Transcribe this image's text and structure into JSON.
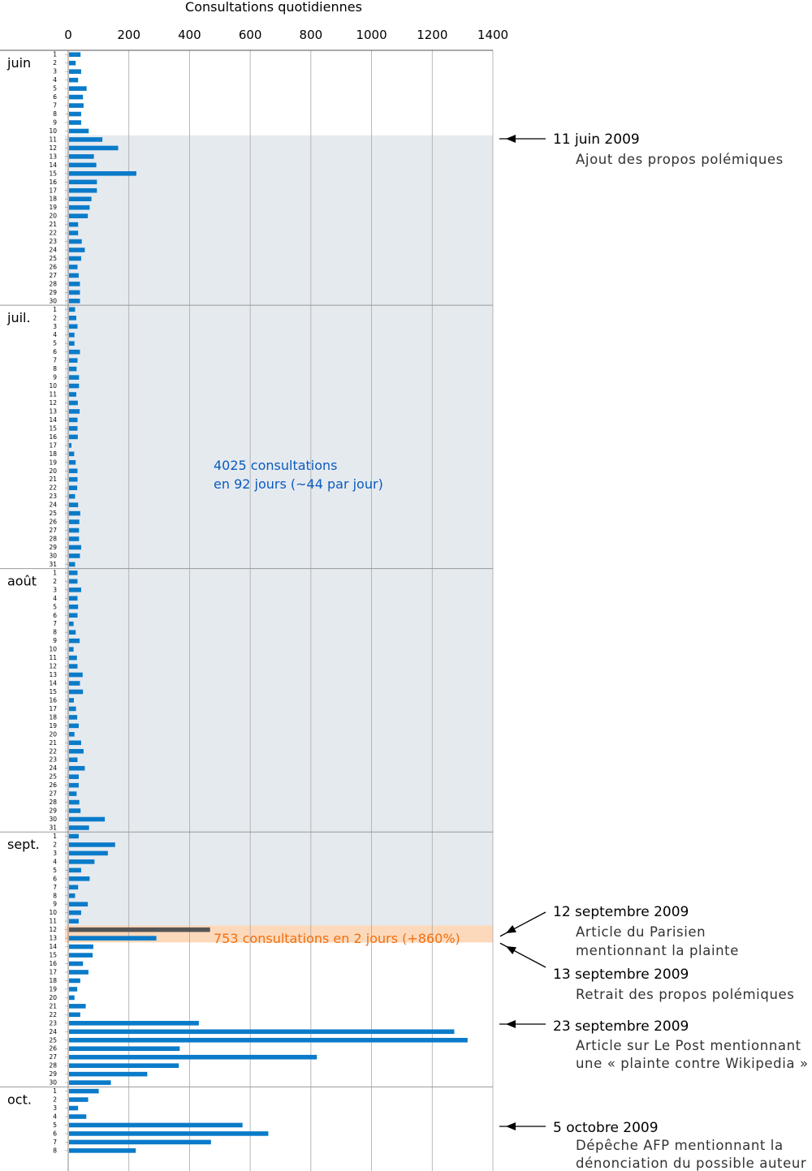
{
  "chart_data": {
    "type": "bar",
    "orientation": "horizontal",
    "title": "Consultations quotidiennes",
    "xlim": [
      0,
      1400
    ],
    "x_ticks": [
      0,
      200,
      400,
      600,
      800,
      1000,
      1200,
      1400
    ],
    "grid": true,
    "months": [
      {
        "label": "juin",
        "values": [
          38,
          22,
          40,
          30,
          58,
          46,
          48,
          40,
          40,
          65,
          110,
          162,
          82,
          90,
          222,
          92,
          92,
          74,
          68,
          62,
          30,
          30,
          42,
          52,
          40,
          28,
          32,
          36,
          36,
          36
        ]
      },
      {
        "label": "juil.",
        "values": [
          20,
          24,
          28,
          18,
          18,
          36,
          28,
          25,
          33,
          33,
          24,
          29,
          35,
          28,
          28,
          29,
          8,
          17,
          22,
          28,
          28,
          27,
          20,
          30,
          37,
          34,
          33,
          33,
          40,
          36,
          20
        ]
      },
      {
        "label": "août",
        "values": [
          28,
          28,
          40,
          28,
          30,
          28,
          15,
          22,
          35,
          15,
          26,
          28,
          45,
          36,
          46,
          16,
          23,
          27,
          32,
          18,
          40,
          48,
          28,
          52,
          32,
          32,
          25,
          34,
          38,
          118,
          66
        ]
      },
      {
        "label": "sept.",
        "values": [
          32,
          152,
          128,
          84,
          40,
          68,
          30,
          20,
          62,
          40,
          32,
          465,
          288,
          80,
          78,
          46,
          64,
          37,
          27,
          18,
          55,
          37,
          428,
          1270,
          1314,
          365,
          817,
          362,
          258,
          138
        ]
      },
      {
        "label": "oct.",
        "values": [
          98,
          63,
          30,
          57,
          572,
          657,
          468,
          220
        ]
      }
    ],
    "shaded_period_label": [
      "4025 consultations",
      "en 92 jours (~44 par jour)"
    ],
    "highlight_label": "753 consultations en 2 jours (+860%)",
    "annotations": [
      {
        "date": "11 juin 2009",
        "text": [
          "Ajout des propos polémiques"
        ]
      },
      {
        "date": "12 septembre 2009",
        "text": [
          "Article du Parisien",
          "mentionnant la plainte"
        ]
      },
      {
        "date": "13 septembre 2009",
        "text": [
          "Retrait des propos polémiques"
        ]
      },
      {
        "date": "23 septembre 2009",
        "text": [
          "Article sur Le Post mentionnant",
          "une « plainte contre Wikipedia »"
        ]
      },
      {
        "date": "5 octobre 2009",
        "text": [
          "Dépêche AFP mentionnant la",
          "dénonciation du possible auteur"
        ]
      }
    ],
    "colors": {
      "bar": "#0a7bc9",
      "bar_dark": "#555555",
      "shade": "#e5eaef",
      "highlight": "#fdd9bb",
      "shade_text": "#0a5bbf",
      "highlight_text": "#f07010"
    }
  }
}
